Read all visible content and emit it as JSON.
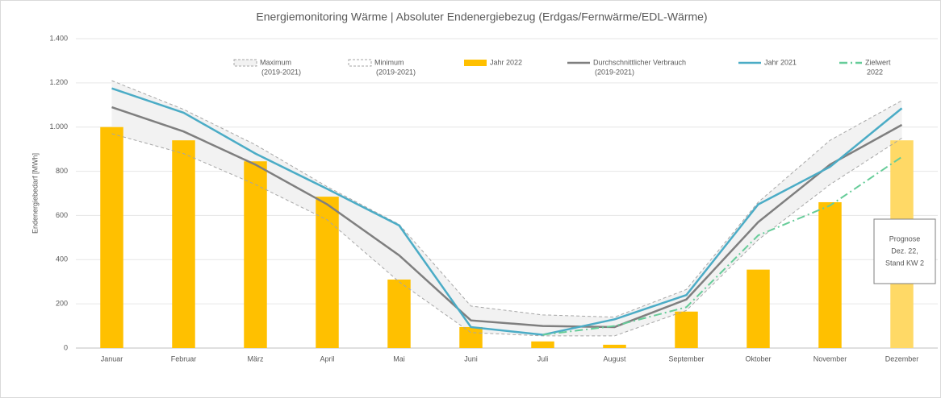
{
  "chart_data": {
    "type": "bar_line",
    "title": "Energiemonitoring  Wärme | Absoluter Endenergiebezug (Erdgas/Fernwärme/EDL-Wärme)",
    "y_label": "Endenergiebedarf [MWh]",
    "categories": [
      "Januar",
      "Februar",
      "März",
      "April",
      "Mai",
      "Juni",
      "Juli",
      "August",
      "September",
      "Oktober",
      "November",
      "Dezember"
    ],
    "ylim": [
      0,
      1400
    ],
    "yticks": [
      0,
      200,
      400,
      600,
      800,
      {
        "value": 1000,
        "label": "1.000"
      },
      {
        "value": 1200,
        "label": "1.200"
      },
      {
        "value": 1400,
        "label": "1.400"
      }
    ],
    "grid": true,
    "series": [
      {
        "name": "Maximum",
        "name_note": "(2019-2021)",
        "kind": "band_max",
        "color": "#a6a6a6",
        "values": [
          1210,
          1080,
          920,
          730,
          560,
          190,
          150,
          140,
          265,
          660,
          940,
          1120
        ]
      },
      {
        "name": "Minimum",
        "name_note": "(2019-2021)",
        "kind": "band_min",
        "color": "#a6a6a6",
        "values": [
          970,
          880,
          740,
          580,
          300,
          70,
          55,
          55,
          170,
          490,
          740,
          950
        ]
      },
      {
        "name": "Jahr 2022",
        "kind": "bar",
        "color": "#ffc000",
        "colors": [
          "#ffc000",
          "#ffc000",
          "#ffc000",
          "#ffc000",
          "#ffc000",
          "#ffc000",
          "#ffc000",
          "#ffc000",
          "#ffc000",
          "#ffc000",
          "#ffc000",
          "#ffd966"
        ],
        "values": [
          1000,
          940,
          845,
          685,
          310,
          95,
          30,
          15,
          165,
          355,
          660,
          940
        ]
      },
      {
        "name": "Durchschnittlicher Verbrauch",
        "name_note": "(2019-2021)",
        "kind": "line",
        "color": "#7f7f7f",
        "values": [
          1090,
          980,
          830,
          650,
          420,
          125,
          100,
          95,
          220,
          570,
          830,
          1010
        ]
      },
      {
        "name": "Jahr 2021",
        "kind": "line",
        "color": "#4bacc6",
        "values": [
          1175,
          1065,
          880,
          720,
          555,
          95,
          60,
          130,
          240,
          650,
          820,
          1085
        ]
      },
      {
        "name": "Zielwert",
        "name_note": "2022",
        "kind": "dashdot",
        "color": "#66cc99",
        "values": [
          null,
          null,
          null,
          null,
          null,
          null,
          60,
          100,
          185,
          510,
          645,
          865
        ]
      }
    ],
    "annotation": [
      "Prognose",
      "Dez. 22,",
      "Stand KW 2"
    ]
  }
}
